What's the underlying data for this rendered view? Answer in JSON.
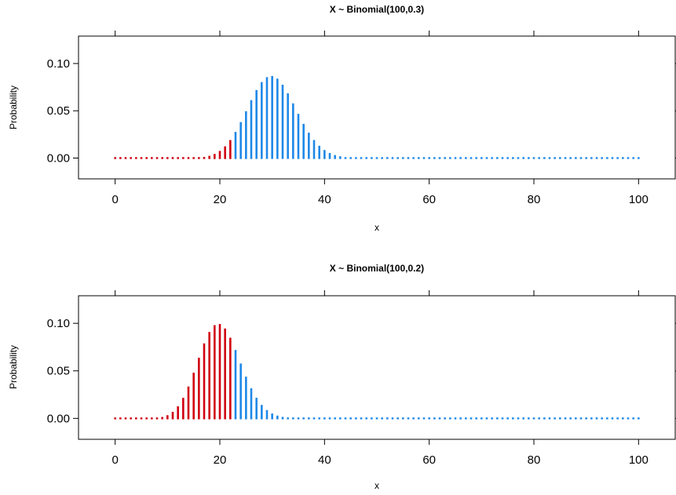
{
  "chart_data": [
    {
      "type": "bar",
      "title": "X ~ Binomial(100,0.3)",
      "xlabel": "x",
      "ylabel": "Probability",
      "distribution": {
        "n": 100,
        "p": 0.3
      },
      "x": {
        "min": 0,
        "max": 100
      },
      "xlim": [
        -7,
        107
      ],
      "ylim": [
        -0.022,
        0.129
      ],
      "xticks": [
        0,
        20,
        40,
        60,
        80,
        100
      ],
      "xtick_labels": [
        "0",
        "20",
        "40",
        "60",
        "80",
        "100"
      ],
      "yticks": [
        0.0,
        0.05,
        0.1
      ],
      "ytick_labels": [
        "0.00",
        "0.05",
        "0.10"
      ],
      "highlight_max_x": 22,
      "colors": {
        "highlight": "#d00010",
        "other": "#1e88e8"
      },
      "grid": false,
      "legend": "none"
    },
    {
      "type": "bar",
      "title": "X ~ Binomial(100,0.2)",
      "xlabel": "x",
      "ylabel": "Probability",
      "distribution": {
        "n": 100,
        "p": 0.2
      },
      "x": {
        "min": 0,
        "max": 100
      },
      "xlim": [
        -7,
        107
      ],
      "ylim": [
        -0.022,
        0.129
      ],
      "xticks": [
        0,
        20,
        40,
        60,
        80,
        100
      ],
      "xtick_labels": [
        "0",
        "20",
        "40",
        "60",
        "80",
        "100"
      ],
      "yticks": [
        0.0,
        0.05,
        0.1
      ],
      "ytick_labels": [
        "0.00",
        "0.05",
        "0.10"
      ],
      "highlight_max_x": 22,
      "colors": {
        "highlight": "#d00010",
        "other": "#1e88e8"
      },
      "grid": false,
      "legend": "none"
    }
  ]
}
